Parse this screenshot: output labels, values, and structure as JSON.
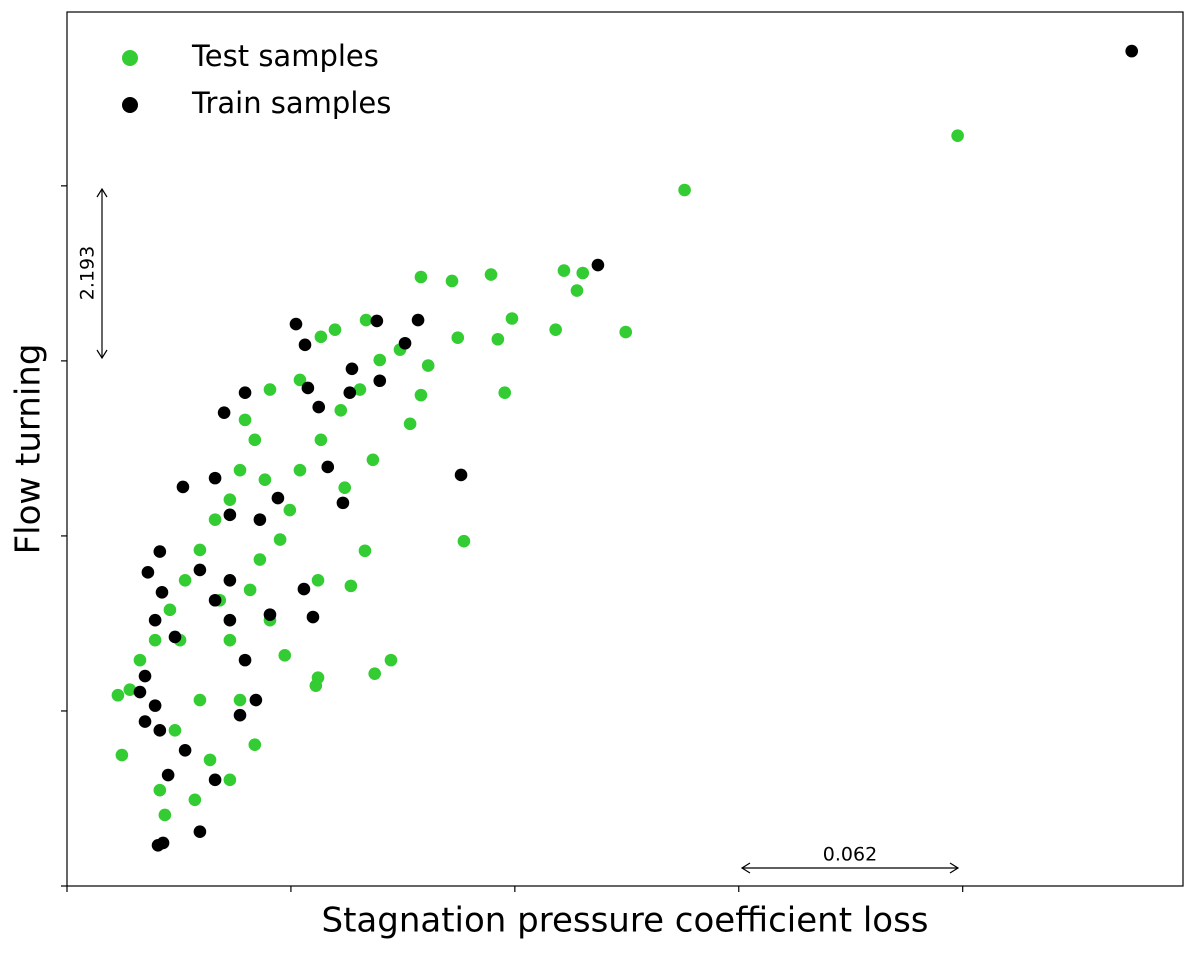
{
  "chart_data": {
    "type": "scatter",
    "x_label": "Stagnation pressure coefficient loss",
    "y_label": "Flow turning",
    "annotations": [
      "2.193",
      "0.062"
    ],
    "xlim": [
      0,
      0.309
    ],
    "ylim": [
      0,
      10.95
    ],
    "xticks": [
      0,
      0.062,
      0.124,
      0.186,
      0.248
    ],
    "yticks": [
      0,
      2.193,
      4.386,
      6.579,
      8.772
    ],
    "legend": "upper left",
    "series": [
      {
        "name": "Test samples",
        "color": "#33cc33",
        "x": [
          0.2466,
          0.171,
          0.098,
          0.1066,
          0.1174,
          0.1376,
          0.1428,
          0.1412,
          0.1547,
          0.1353,
          0.1232,
          0.1193,
          0.1082,
          0.1212,
          0.098,
          0.095,
          0.0847,
          0.0769,
          0.0825,
          0.1099,
          0.0786,
          0.0897,
          0.0852,
          0.0695,
          0.0689,
          0.0695,
          0.0828,
          0.0742,
          0.0703,
          0.0645,
          0.0562,
          0.052,
          0.0479,
          0.0451,
          0.041,
          0.0368,
          0.0327,
          0.0285,
          0.0244,
          0.0202,
          0.0174,
          0.0141,
          0.0152,
          0.0257,
          0.0354,
          0.0271,
          0.0451,
          0.0396,
          0.052,
          0.0479,
          0.0603,
          0.0562,
          0.0534,
          0.0617,
          0.0645,
          0.0703,
          0.0758,
          0.0811,
          0.0866,
          0.0922,
          0.1,
          0.0423,
          0.0313,
          0.0368,
          0.0299,
          0.0507,
          0.0451,
          0.0548,
          0.0493,
          0.059
        ],
        "values": [
          9.4,
          8.72,
          7.63,
          7.58,
          7.66,
          7.71,
          7.68,
          7.46,
          6.94,
          6.97,
          7.11,
          6.85,
          6.87,
          6.18,
          6.15,
          5.79,
          5.34,
          4.99,
          4.2,
          4.32,
          3.76,
          2.83,
          2.66,
          2.61,
          2.51,
          3.83,
          7.09,
          6.97,
          6.88,
          6.34,
          6.22,
          5.59,
          5.21,
          4.84,
          4.59,
          4.21,
          3.83,
          3.46,
          3.08,
          2.83,
          2.46,
          2.39,
          1.64,
          1.2,
          1.08,
          0.89,
          1.33,
          1.58,
          1.77,
          2.33,
          2.89,
          3.33,
          4.09,
          4.71,
          5.21,
          5.59,
          5.96,
          6.22,
          6.59,
          6.72,
          6.52,
          3.58,
          3.08,
          2.33,
          1.95,
          3.71,
          3.08,
          5.09,
          5.84,
          4.34
        ]
      },
      {
        "name": "Train samples",
        "color": "#000000",
        "x": [
          0.2948,
          0.147,
          0.1091,
          0.0972,
          0.0858,
          0.0634,
          0.0659,
          0.0936,
          0.0789,
          0.0866,
          0.0783,
          0.0667,
          0.0493,
          0.0435,
          0.0697,
          0.0722,
          0.0764,
          0.0681,
          0.0656,
          0.0321,
          0.041,
          0.0257,
          0.0224,
          0.0263,
          0.0244,
          0.0299,
          0.0216,
          0.0202,
          0.0244,
          0.0216,
          0.0257,
          0.0327,
          0.028,
          0.0252,
          0.0266,
          0.0368,
          0.041,
          0.0479,
          0.0523,
          0.0493,
          0.0451,
          0.041,
          0.0368,
          0.0451,
          0.0534,
          0.0584,
          0.0451,
          0.0562
        ],
        "values": [
          10.46,
          7.78,
          5.15,
          7.09,
          7.08,
          7.04,
          6.78,
          6.8,
          6.48,
          6.33,
          6.18,
          6.24,
          6.18,
          5.93,
          6.0,
          5.25,
          4.8,
          3.37,
          3.72,
          5.0,
          5.11,
          4.19,
          3.93,
          3.68,
          3.33,
          3.12,
          2.63,
          2.43,
          2.26,
          2.06,
          1.95,
          1.7,
          1.39,
          0.51,
          0.54,
          0.68,
          1.33,
          2.14,
          2.33,
          2.83,
          3.33,
          3.58,
          3.96,
          3.83,
          4.59,
          4.86,
          4.65,
          3.4
        ]
      }
    ]
  }
}
